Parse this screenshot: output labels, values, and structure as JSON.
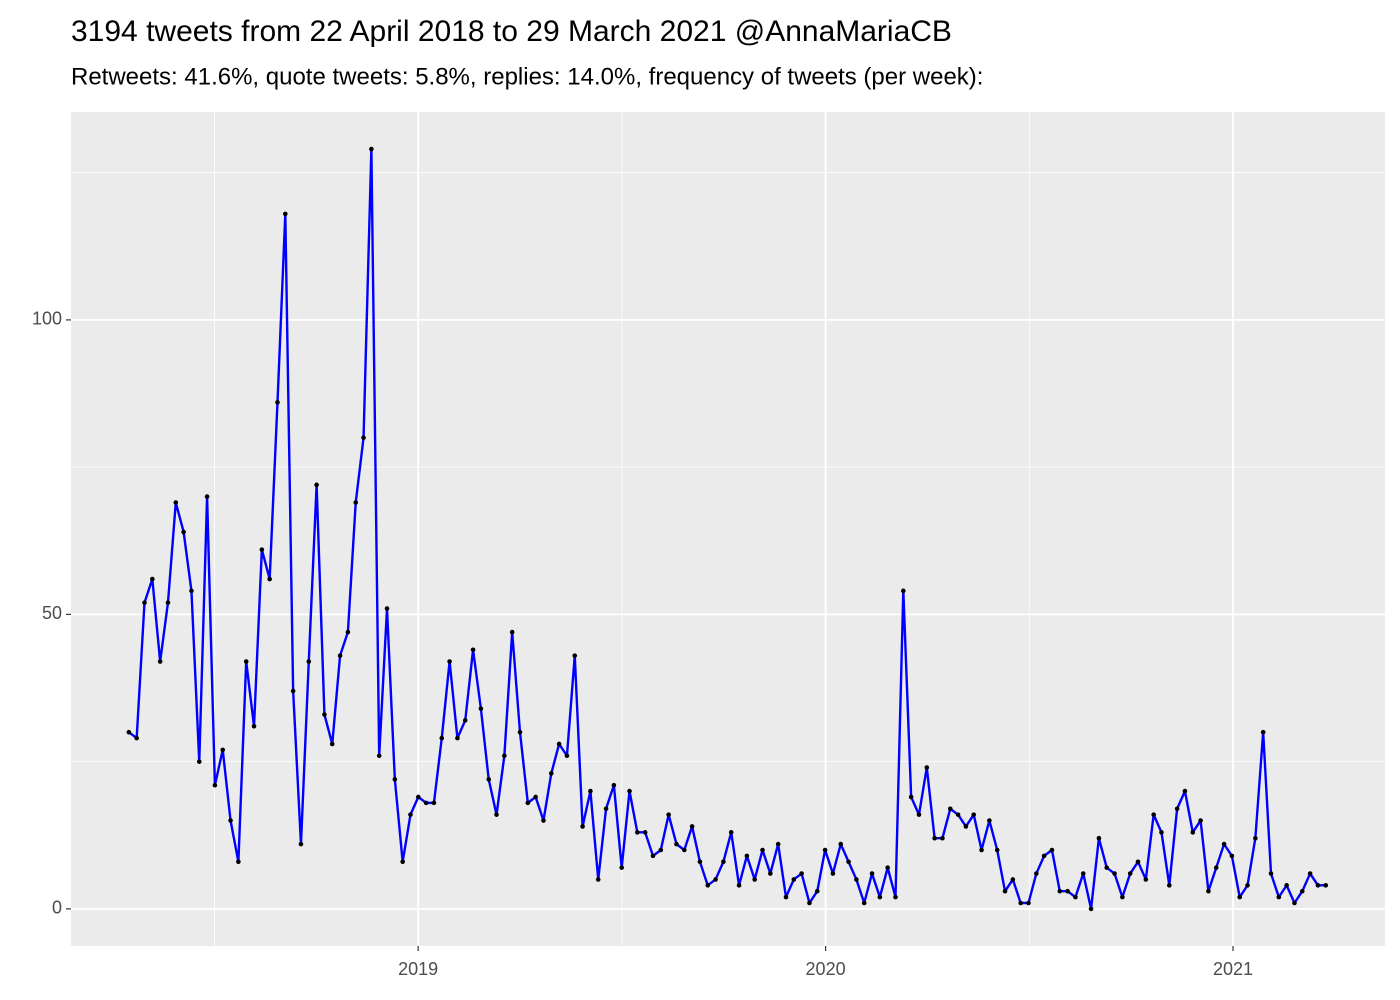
{
  "chart_data": {
    "type": "line",
    "title": "3194 tweets from 22 April 2018 to 29 March 2021 @AnnaMariaCB",
    "subtitle": "Retweets: 41.6%, quote tweets: 5.8%, replies: 14.0%, frequency of tweets (per week):",
    "x": [
      2018.29,
      2018.3092,
      2018.3284,
      2018.3476,
      2018.3668,
      2018.386,
      2018.4052,
      2018.4244,
      2018.4436,
      2018.4628,
      2018.482,
      2018.5012,
      2018.5204,
      2018.5396,
      2018.5588,
      2018.578,
      2018.5972,
      2018.6164,
      2018.6356,
      2018.6548,
      2018.674,
      2018.6932,
      2018.7124,
      2018.7316,
      2018.7508,
      2018.77,
      2018.7892,
      2018.8084,
      2018.8276,
      2018.8468,
      2018.866,
      2018.8852,
      2018.9044,
      2018.9236,
      2018.9428,
      2018.962,
      2018.9812,
      2019.0004,
      2019.0196,
      2019.0388,
      2019.058,
      2019.0772,
      2019.0964,
      2019.1156,
      2019.1348,
      2019.154,
      2019.1732,
      2019.1924,
      2019.2116,
      2019.2308,
      2019.25,
      2019.2692,
      2019.2884,
      2019.3076,
      2019.3268,
      2019.346,
      2019.3652,
      2019.3844,
      2019.4036,
      2019.4228,
      2019.442,
      2019.4612,
      2019.4804,
      2019.4996,
      2019.5188,
      2019.538,
      2019.5572,
      2019.5764,
      2019.5956,
      2019.6148,
      2019.634,
      2019.6532,
      2019.6724,
      2019.6916,
      2019.7108,
      2019.73,
      2019.7492,
      2019.7684,
      2019.7876,
      2019.8068,
      2019.826,
      2019.8452,
      2019.8644,
      2019.8836,
      2019.9028,
      2019.922,
      2019.9412,
      2019.9604,
      2019.9796,
      2019.9988,
      2020.018,
      2020.0372,
      2020.0564,
      2020.0756,
      2020.0948,
      2020.114,
      2020.1332,
      2020.1524,
      2020.1716,
      2020.1908,
      2020.21,
      2020.2292,
      2020.2484,
      2020.2676,
      2020.2868,
      2020.306,
      2020.3252,
      2020.3444,
      2020.3636,
      2020.3828,
      2020.402,
      2020.4212,
      2020.4404,
      2020.4596,
      2020.4788,
      2020.498,
      2020.5172,
      2020.5364,
      2020.5556,
      2020.5748,
      2020.594,
      2020.6132,
      2020.6324,
      2020.6516,
      2020.6708,
      2020.69,
      2020.7092,
      2020.7284,
      2020.7476,
      2020.7668,
      2020.786,
      2020.8052,
      2020.8244,
      2020.8436,
      2020.8628,
      2020.882,
      2020.9012,
      2020.9204,
      2020.9396,
      2020.9588,
      2020.978,
      2020.9972,
      2021.0164,
      2021.0356,
      2021.0548,
      2021.074,
      2021.0932,
      2021.1124,
      2021.1316,
      2021.1508,
      2021.17,
      2021.1892,
      2021.2084,
      2021.2276
    ],
    "values": [
      30,
      29,
      52,
      56,
      42,
      52,
      69,
      64,
      54,
      25,
      70,
      21,
      27,
      15,
      8,
      42,
      31,
      61,
      56,
      86,
      118,
      37,
      11,
      42,
      72,
      33,
      28,
      43,
      47,
      69,
      80,
      129,
      26,
      51,
      22,
      8,
      16,
      19,
      18,
      18,
      29,
      42,
      29,
      32,
      44,
      34,
      22,
      16,
      26,
      47,
      30,
      18,
      19,
      15,
      23,
      28,
      26,
      43,
      14,
      20,
      5,
      17,
      21,
      7,
      20,
      13,
      13,
      9,
      10,
      16,
      11,
      10,
      14,
      8,
      4,
      5,
      8,
      13,
      4,
      9,
      5,
      10,
      6,
      11,
      2,
      5,
      6,
      1,
      3,
      10,
      6,
      11,
      8,
      5,
      1,
      6,
      2,
      7,
      2,
      54,
      19,
      16,
      24,
      12,
      12,
      17,
      16,
      14,
      16,
      10,
      15,
      10,
      3,
      5,
      1,
      1,
      6,
      9,
      10,
      3,
      3,
      2,
      6,
      0,
      12,
      7,
      6,
      2,
      6,
      8,
      5,
      16,
      13,
      4,
      17,
      20,
      13,
      15,
      3,
      7,
      11,
      9,
      2,
      4,
      12,
      30,
      6,
      2,
      4,
      1,
      3,
      6,
      4,
      4
    ],
    "color": "#0000ff",
    "point_color": "#000000",
    "xlim": [
      2018.148,
      2021.373
    ],
    "xticks": [
      2019,
      2020,
      2021
    ],
    "minor_xticks": [
      2018.5,
      2019.5,
      2020.5
    ],
    "ylim": [
      -6.3,
      135.3
    ],
    "yticks": [
      0,
      50,
      100
    ],
    "minor_yticks": [
      25,
      75,
      125
    ],
    "grid": true
  }
}
